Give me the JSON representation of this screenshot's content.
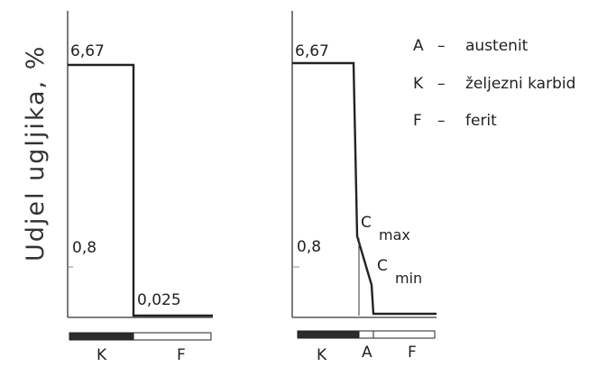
{
  "y_axis_label": "Udjel ugljika, %",
  "left_diagram": {
    "value_top": "6,67",
    "value_mid": "0,8",
    "value_low": "0,025",
    "phase_bar": [
      {
        "label": "K",
        "fill": "#2b2b2b"
      },
      {
        "label": "F",
        "fill": "#ffffff"
      }
    ]
  },
  "right_diagram": {
    "value_top": "6,67",
    "value_mid": "0,8",
    "c_max": {
      "main": "C",
      "sub": "max"
    },
    "c_min": {
      "main": "C",
      "sub": "min"
    },
    "phase_bar": [
      {
        "label": "K",
        "fill": "#2b2b2b"
      },
      {
        "label": "A",
        "fill": "#ffffff"
      },
      {
        "label": "F",
        "fill": "#ffffff"
      }
    ]
  },
  "legend": [
    {
      "key": "A",
      "dash": "–",
      "text": "austenit"
    },
    {
      "key": "K",
      "dash": "–",
      "text": "željezni karbid"
    },
    {
      "key": "F",
      "dash": "–",
      "text": "ferit"
    }
  ]
}
